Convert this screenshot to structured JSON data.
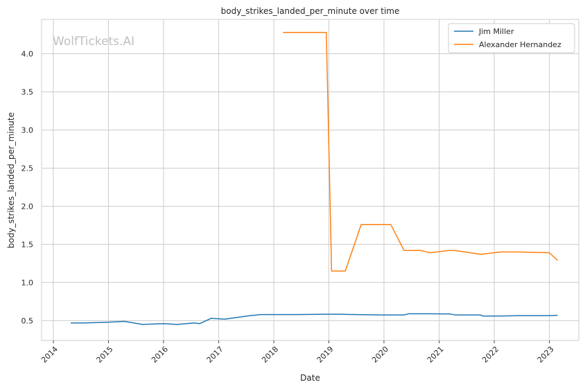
{
  "chart_data": {
    "type": "line",
    "title": "body_strikes_landed_per_minute over time",
    "xlabel": "Date",
    "ylabel": "body_strikes_landed_per_minute",
    "watermark": "WolfTickets.AI",
    "xlim": [
      "2013-10-15",
      "2023-07-15"
    ],
    "ylim": [
      0.24,
      4.45
    ],
    "x_ticks": [
      "2014",
      "2015",
      "2016",
      "2017",
      "2018",
      "2019",
      "2020",
      "2021",
      "2022",
      "2023"
    ],
    "y_ticks": [
      "0.5",
      "1.0",
      "1.5",
      "2.0",
      "2.5",
      "3.0",
      "3.5",
      "4.0"
    ],
    "grid": true,
    "legend_position": "top-right",
    "series": [
      {
        "name": "Jim Miller",
        "color": "#1f77b4",
        "x": [
          "2014-04-26",
          "2014-08-01",
          "2015-01-01",
          "2015-04-18",
          "2015-08-15",
          "2016-01-02",
          "2016-04-01",
          "2016-07-23",
          "2016-08-27",
          "2016-11-12",
          "2017-02-11",
          "2017-07-08",
          "2017-10-07",
          "2018-02-24",
          "2018-06-01",
          "2018-12-29",
          "2019-04-01",
          "2019-08-03",
          "2020-01-01",
          "2020-05-13",
          "2020-06-13",
          "2020-11-01",
          "2021-03-13",
          "2021-04-17",
          "2021-10-02",
          "2021-10-16",
          "2022-02-15",
          "2022-06-04",
          "2023-01-01",
          "2023-02-25"
        ],
        "y": [
          0.47,
          0.47,
          0.48,
          0.49,
          0.45,
          0.46,
          0.45,
          0.47,
          0.46,
          0.53,
          0.52,
          0.56,
          0.58,
          0.58,
          0.58,
          0.585,
          0.583,
          0.578,
          0.575,
          0.575,
          0.59,
          0.59,
          0.588,
          0.575,
          0.575,
          0.56,
          0.56,
          0.565,
          0.565,
          0.57
        ]
      },
      {
        "name": "Alexander Hernandez",
        "color": "#ff7f0e",
        "x": [
          "2018-03-03",
          "2018-12-15",
          "2019-01-19",
          "2019-04-20",
          "2019-08-03",
          "2020-02-15",
          "2020-05-13",
          "2020-09-01",
          "2020-11-01",
          "2021-03-06",
          "2021-04-15",
          "2021-10-02",
          "2022-02-15",
          "2022-06-01",
          "2023-01-01",
          "2023-02-25"
        ],
        "y": [
          4.28,
          4.28,
          1.15,
          1.15,
          1.76,
          1.76,
          1.42,
          1.42,
          1.39,
          1.42,
          1.42,
          1.37,
          1.4,
          1.4,
          1.39,
          1.29
        ]
      }
    ]
  }
}
